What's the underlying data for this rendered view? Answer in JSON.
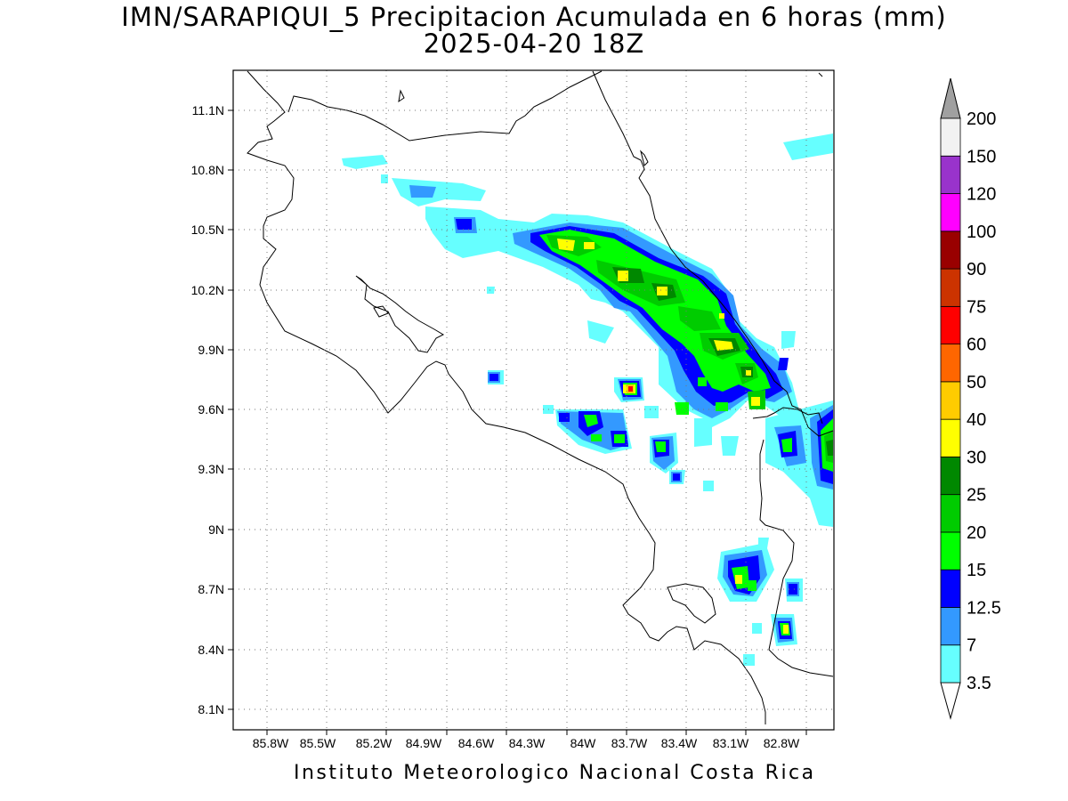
{
  "title_line1": "IMN/SARAPIQUI_5 Precipitacion Acumulada en 6 horas (mm)",
  "title_line2": "2025-04-20 18Z",
  "footer": "Instituto Meteorologico Nacional Costa Rica",
  "map": {
    "lon_range": [
      -86.0,
      -82.4
    ],
    "lat_range": [
      8.0,
      11.3
    ],
    "lat_ticks": [
      "11.1N",
      "10.8N",
      "10.5N",
      "10.2N",
      "9.9N",
      "9.6N",
      "9.3N",
      "9N",
      "8.7N",
      "8.4N",
      "8.1N"
    ],
    "lon_ticks": [
      "85.8W",
      "85.5W",
      "85.2W",
      "84.9W",
      "84.6W",
      "84.3W",
      "84W",
      "83.7W",
      "83.4W",
      "83.1W",
      "82.8W"
    ],
    "gridlines": true
  },
  "legend": {
    "labels": [
      "3.5",
      "7",
      "12.5",
      "15",
      "20",
      "25",
      "30",
      "40",
      "50",
      "60",
      "75",
      "90",
      "100",
      "120",
      "150",
      "200"
    ],
    "colors": [
      "#66ffff",
      "#3399ff",
      "#0000ff",
      "#00ff00",
      "#00cc00",
      "#008800",
      "#ffff00",
      "#ffcc00",
      "#ff6600",
      "#ff0000",
      "#cc3300",
      "#990000",
      "#ff00ff",
      "#9933cc",
      "#f2f2f2",
      "#a0a0a0"
    ]
  }
}
